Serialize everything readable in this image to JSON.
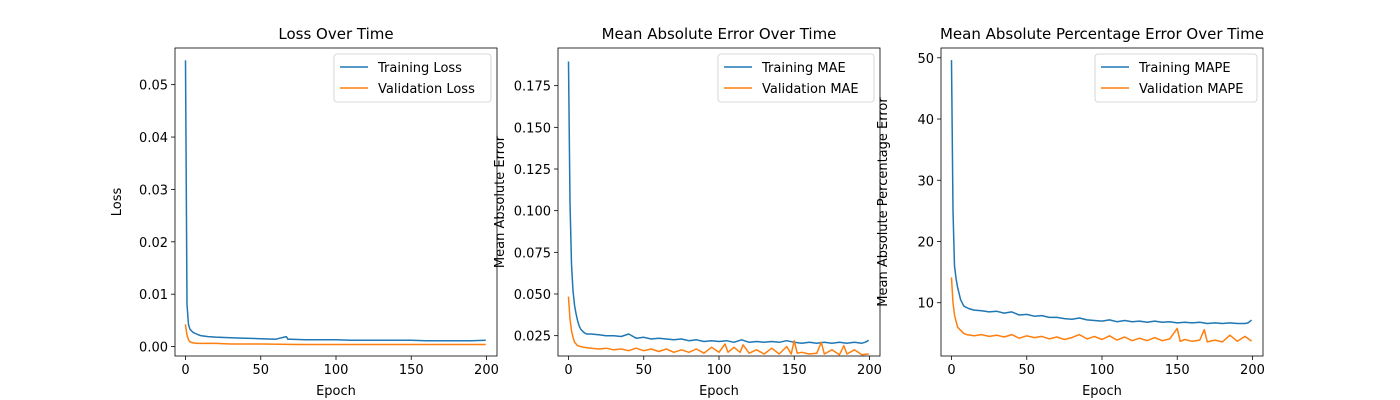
{
  "chart_data": [
    {
      "type": "line",
      "title": "Loss Over Time",
      "xlabel": "Epoch",
      "ylabel": "Loss",
      "xlim": [
        -7,
        207
      ],
      "ylim": [
        -0.0018,
        0.057
      ],
      "xticks": [
        0,
        50,
        100,
        150,
        200
      ],
      "yticks": [
        0.0,
        0.01,
        0.02,
        0.03,
        0.04,
        0.05
      ],
      "ytick_labels": [
        "0.00",
        "0.01",
        "0.02",
        "0.03",
        "0.04",
        "0.05"
      ],
      "legend": "top-right",
      "series": [
        {
          "name": "Training Loss",
          "color": "#1f77b4",
          "x": [
            0,
            1,
            2,
            3,
            5,
            8,
            10,
            15,
            20,
            30,
            40,
            50,
            60,
            67,
            68,
            70,
            80,
            90,
            100,
            110,
            120,
            130,
            140,
            150,
            160,
            170,
            180,
            190,
            199
          ],
          "y": [
            0.0545,
            0.008,
            0.0042,
            0.0033,
            0.0027,
            0.0023,
            0.0021,
            0.0019,
            0.0018,
            0.0017,
            0.0016,
            0.0015,
            0.0014,
            0.0019,
            0.0014,
            0.0014,
            0.0013,
            0.0013,
            0.0013,
            0.0012,
            0.0012,
            0.0012,
            0.0012,
            0.0012,
            0.0011,
            0.0011,
            0.0011,
            0.0011,
            0.0012
          ]
        },
        {
          "name": "Validation Loss",
          "color": "#ff7f0e",
          "x": [
            0,
            1,
            2,
            3,
            5,
            8,
            10,
            20,
            30,
            50,
            75,
            100,
            125,
            150,
            175,
            199
          ],
          "y": [
            0.0041,
            0.0022,
            0.0013,
            0.0009,
            0.0007,
            0.0006,
            0.0006,
            0.0006,
            0.0005,
            0.0005,
            0.0004,
            0.0004,
            0.0004,
            0.0004,
            0.0004,
            0.0004
          ]
        }
      ]
    },
    {
      "type": "line",
      "title": "Mean Absolute Error Over Time",
      "xlabel": "Epoch",
      "ylabel": "Mean Absolute Error",
      "xlim": [
        -7,
        207
      ],
      "ylim": [
        0.0128,
        0.1976
      ],
      "xticks": [
        0,
        50,
        100,
        150,
        200
      ],
      "yticks": [
        0.025,
        0.05,
        0.075,
        0.1,
        0.125,
        0.15,
        0.175
      ],
      "ytick_labels": [
        "0.025",
        "0.050",
        "0.075",
        "0.100",
        "0.125",
        "0.150",
        "0.175"
      ],
      "legend": "top-right",
      "series": [
        {
          "name": "Training MAE",
          "color": "#1f77b4",
          "x": [
            0,
            1,
            2,
            3,
            4,
            5,
            6,
            7,
            8,
            10,
            12,
            15,
            20,
            25,
            30,
            35,
            40,
            45,
            50,
            55,
            60,
            65,
            70,
            75,
            80,
            85,
            90,
            95,
            100,
            105,
            110,
            115,
            120,
            125,
            130,
            135,
            140,
            145,
            150,
            155,
            160,
            165,
            170,
            175,
            180,
            185,
            190,
            195,
            197,
            199
          ],
          "y": [
            0.189,
            0.105,
            0.068,
            0.052,
            0.043,
            0.038,
            0.034,
            0.031,
            0.029,
            0.027,
            0.026,
            0.026,
            0.0255,
            0.025,
            0.025,
            0.0245,
            0.026,
            0.0235,
            0.024,
            0.023,
            0.0235,
            0.023,
            0.0225,
            0.023,
            0.022,
            0.0225,
            0.0215,
            0.022,
            0.0215,
            0.022,
            0.021,
            0.0225,
            0.021,
            0.0215,
            0.021,
            0.0215,
            0.021,
            0.022,
            0.021,
            0.0205,
            0.021,
            0.0205,
            0.021,
            0.0205,
            0.021,
            0.0205,
            0.021,
            0.0205,
            0.021,
            0.022
          ]
        },
        {
          "name": "Validation MAE",
          "color": "#ff7f0e",
          "x": [
            0,
            1,
            2,
            3,
            4,
            6,
            8,
            10,
            15,
            20,
            25,
            30,
            35,
            40,
            45,
            50,
            55,
            60,
            65,
            70,
            75,
            80,
            85,
            90,
            95,
            100,
            104,
            106,
            110,
            114,
            116,
            120,
            125,
            130,
            135,
            140,
            145,
            148,
            150,
            152,
            155,
            160,
            165,
            168,
            170,
            175,
            180,
            183,
            185,
            190,
            195,
            199
          ],
          "y": [
            0.048,
            0.035,
            0.028,
            0.024,
            0.021,
            0.019,
            0.0185,
            0.018,
            0.0175,
            0.017,
            0.0175,
            0.0165,
            0.017,
            0.016,
            0.0175,
            0.016,
            0.017,
            0.0155,
            0.017,
            0.015,
            0.0165,
            0.015,
            0.017,
            0.0145,
            0.018,
            0.015,
            0.02,
            0.015,
            0.018,
            0.015,
            0.0195,
            0.0145,
            0.0165,
            0.014,
            0.0175,
            0.014,
            0.0185,
            0.014,
            0.022,
            0.0145,
            0.015,
            0.014,
            0.0145,
            0.021,
            0.014,
            0.0165,
            0.0135,
            0.019,
            0.014,
            0.0165,
            0.0135,
            0.014
          ]
        }
      ]
    },
    {
      "type": "line",
      "title": "Mean Absolute Percentage Error Over Time",
      "xlabel": "Epoch",
      "ylabel": "Mean Absolute Percentage Error",
      "xlim": [
        -7,
        207
      ],
      "ylim": [
        1.3,
        51.6
      ],
      "xticks": [
        0,
        50,
        100,
        150,
        200
      ],
      "yticks": [
        10,
        20,
        30,
        40,
        50
      ],
      "ytick_labels": [
        "10",
        "20",
        "30",
        "40",
        "50"
      ],
      "legend": "top-right",
      "series": [
        {
          "name": "Training MAPE",
          "color": "#1f77b4",
          "x": [
            0,
            1,
            2,
            3,
            4,
            5,
            6,
            7,
            8,
            10,
            12,
            15,
            20,
            25,
            30,
            35,
            40,
            45,
            50,
            55,
            60,
            65,
            70,
            75,
            80,
            85,
            90,
            95,
            100,
            105,
            110,
            115,
            120,
            125,
            130,
            135,
            140,
            145,
            150,
            155,
            160,
            165,
            170,
            175,
            180,
            185,
            190,
            195,
            197,
            199
          ],
          "y": [
            49.5,
            25.0,
            16.0,
            14.0,
            12.5,
            11.5,
            10.5,
            10.0,
            9.5,
            9.2,
            9.0,
            8.8,
            8.7,
            8.5,
            8.6,
            8.3,
            8.5,
            8.0,
            8.1,
            7.8,
            7.9,
            7.6,
            7.6,
            7.4,
            7.3,
            7.5,
            7.2,
            7.1,
            7.0,
            7.2,
            6.9,
            7.1,
            6.9,
            7.0,
            6.8,
            7.0,
            6.8,
            6.9,
            6.7,
            6.8,
            6.7,
            6.8,
            6.6,
            6.7,
            6.6,
            6.7,
            6.6,
            6.6,
            6.7,
            7.1
          ]
        },
        {
          "name": "Validation MAPE",
          "color": "#ff7f0e",
          "x": [
            0,
            1,
            2,
            3,
            4,
            6,
            8,
            10,
            15,
            20,
            25,
            30,
            35,
            40,
            45,
            50,
            55,
            60,
            65,
            70,
            75,
            80,
            85,
            90,
            95,
            100,
            105,
            110,
            115,
            120,
            125,
            130,
            135,
            140,
            145,
            150,
            152,
            155,
            160,
            165,
            168,
            170,
            175,
            180,
            185,
            190,
            195,
            199
          ],
          "y": [
            14.0,
            10.0,
            8.0,
            7.0,
            6.0,
            5.5,
            5.0,
            4.8,
            4.6,
            4.8,
            4.5,
            4.7,
            4.4,
            4.8,
            4.2,
            4.6,
            4.3,
            4.5,
            4.1,
            4.4,
            4.0,
            4.3,
            4.8,
            4.1,
            4.5,
            4.0,
            4.6,
            3.9,
            4.4,
            3.8,
            4.2,
            3.8,
            4.3,
            3.8,
            4.1,
            5.8,
            3.7,
            4.0,
            3.7,
            3.9,
            5.6,
            3.6,
            3.9,
            3.6,
            4.7,
            3.7,
            4.5,
            3.8
          ]
        }
      ]
    }
  ]
}
